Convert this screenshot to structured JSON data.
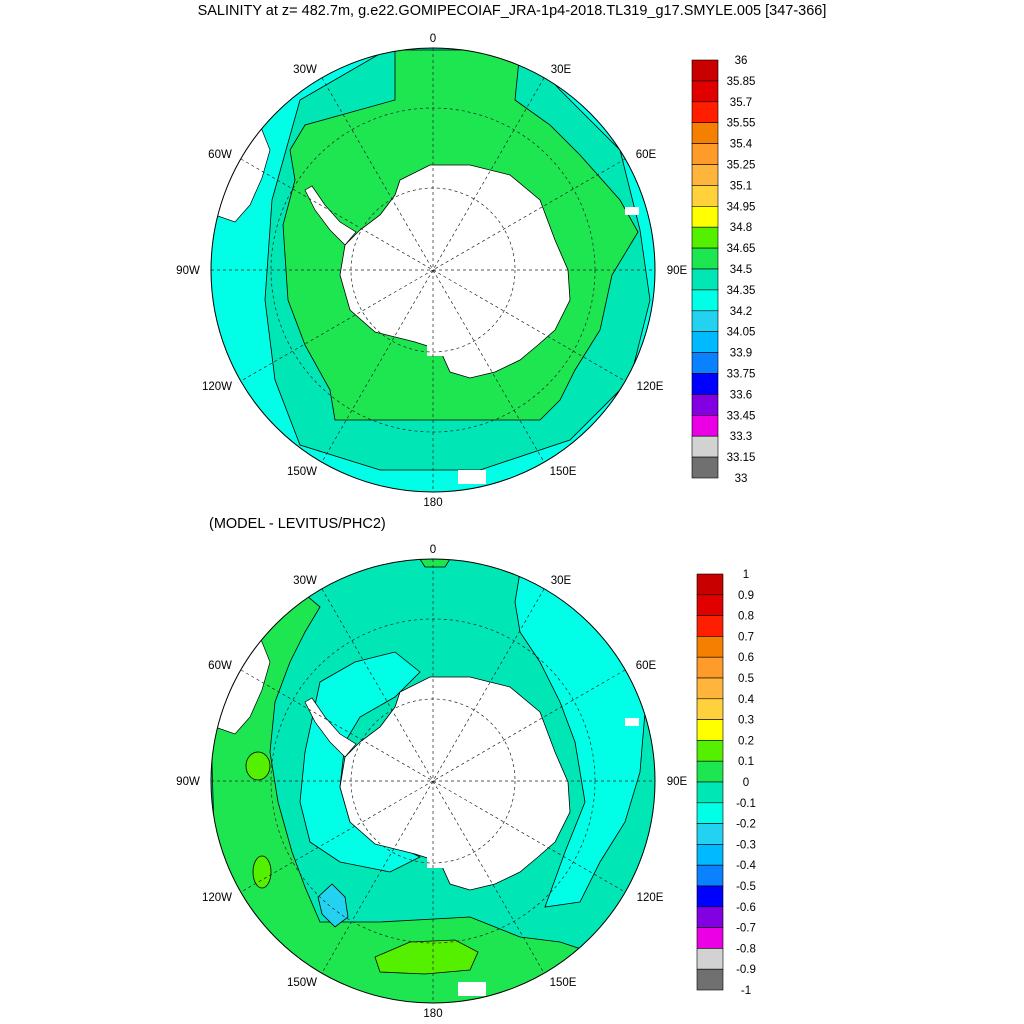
{
  "title": "SALINITY at z= 482.7m, g.e22.GOMIPECOIAF_JRA-1p4-2018.TL319_g17.SMYLE.005 [347-366]",
  "subtitle": "(MODEL - LEVITUS/PHC2)",
  "longitude_labels": {
    "top": "0",
    "top_left": "30W",
    "top_right": "30E",
    "upper_left": "60W",
    "upper_right": "60E",
    "left": "90W",
    "right": "90E",
    "lower_left": "120W",
    "lower_right": "120E",
    "bottom_left": "150W",
    "bottom_right": "150E",
    "bottom": "180"
  },
  "colorbar_top": {
    "labels": [
      "36",
      "35.85",
      "35.7",
      "35.55",
      "35.4",
      "35.25",
      "35.1",
      "34.95",
      "34.8",
      "34.65",
      "34.5",
      "34.35",
      "34.2",
      "34.05",
      "33.9",
      "33.75",
      "33.6",
      "33.45",
      "33.3",
      "33.15",
      "33"
    ],
    "colors": [
      "#c80000",
      "#e10000",
      "#ff1e00",
      "#f57f00",
      "#ff9b28",
      "#ffb43c",
      "#ffd23c",
      "#ffff00",
      "#54f000",
      "#1ee650",
      "#00e6b4",
      "#00ffe6",
      "#23d2f0",
      "#00b9ff",
      "#0a82ff",
      "#0000ff",
      "#8200e1",
      "#eb00e6",
      "#d2d2d2",
      "#707070"
    ]
  },
  "colorbar_bottom": {
    "labels": [
      "1",
      "0.9",
      "0.8",
      "0.7",
      "0.6",
      "0.5",
      "0.4",
      "0.3",
      "0.2",
      "0.1",
      "0",
      "-0.1",
      "-0.2",
      "-0.3",
      "-0.4",
      "-0.5",
      "-0.6",
      "-0.7",
      "-0.8",
      "-0.9",
      "-1"
    ],
    "colors": [
      "#c80000",
      "#e10000",
      "#ff1e00",
      "#f57f00",
      "#ff9b28",
      "#ffb43c",
      "#ffd23c",
      "#ffff00",
      "#54f000",
      "#1ee650",
      "#00e6b4",
      "#00ffe6",
      "#23d2f0",
      "#00b9ff",
      "#0a82ff",
      "#0000ff",
      "#8200e1",
      "#eb00e6",
      "#d2d2d2",
      "#707070"
    ]
  }
}
